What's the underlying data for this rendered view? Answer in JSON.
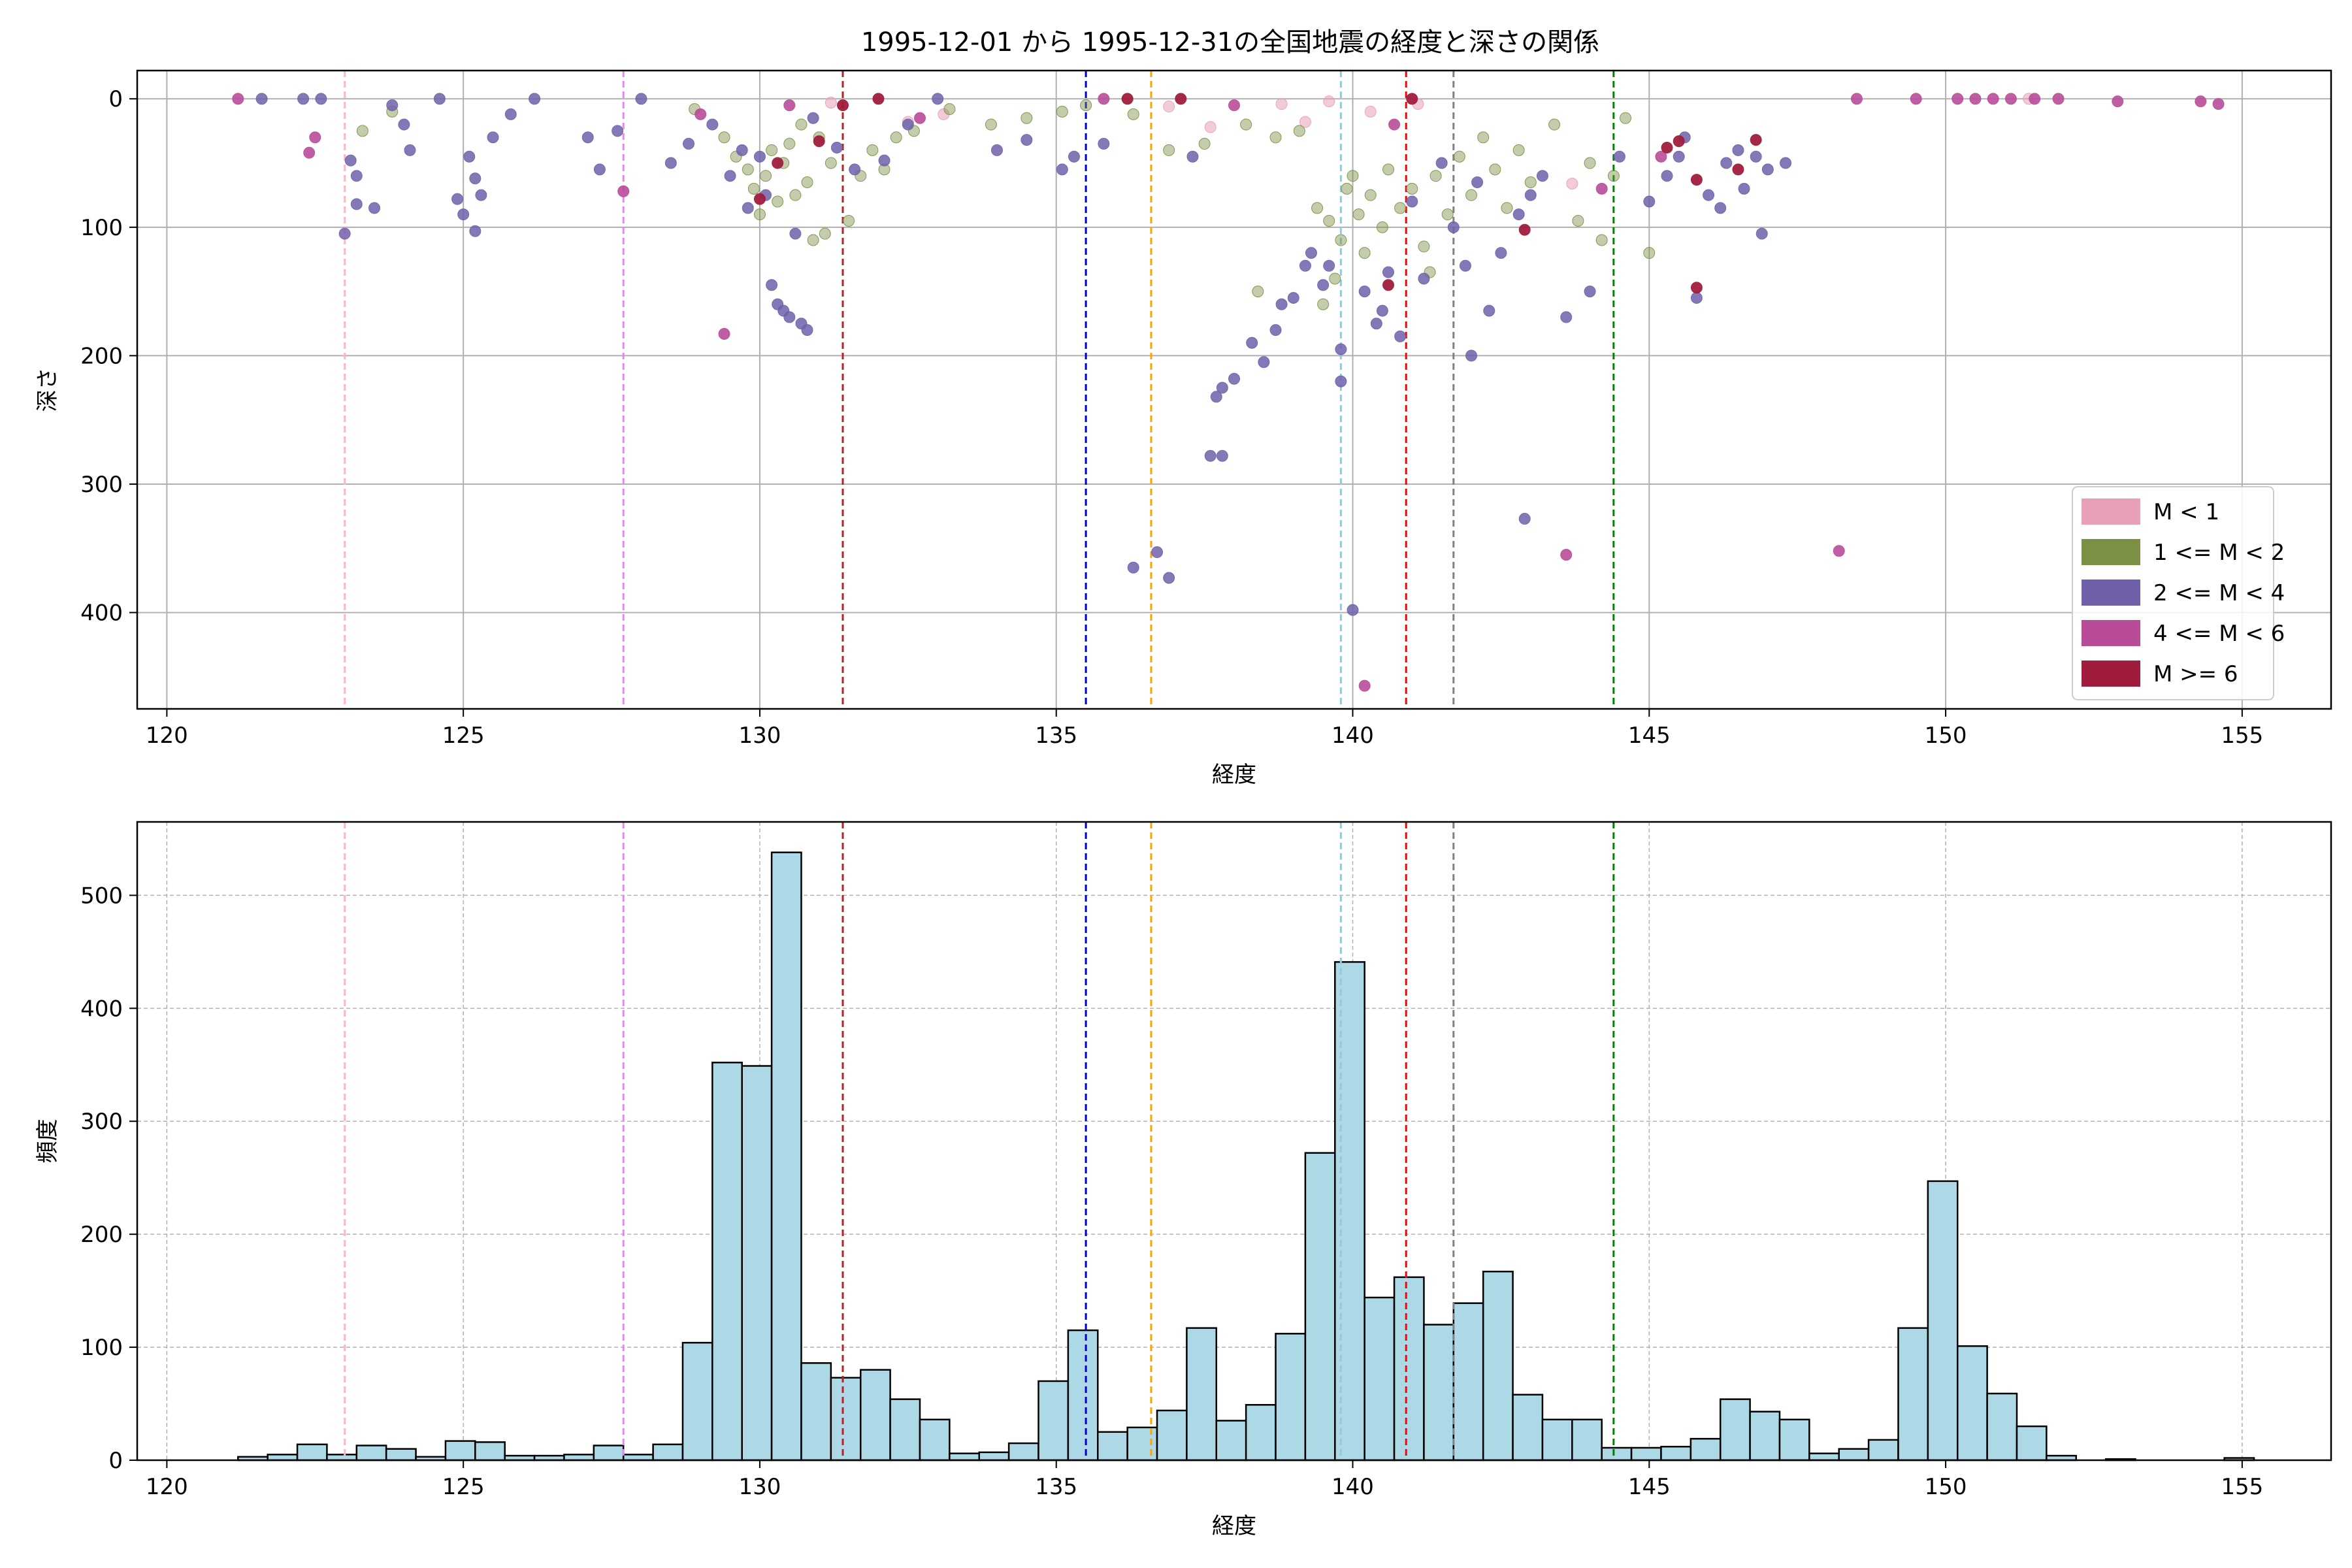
{
  "figure": {
    "title": "1995-12-01 から 1995-12-31の全国地震の経度と深さの関係"
  },
  "chart_data": [
    {
      "type": "scatter",
      "xlabel": "経度",
      "ylabel": "深さ",
      "xlim": [
        119.5,
        156.5
      ],
      "ylim": [
        475,
        -22
      ],
      "y_inverted": true,
      "x_ticks": [
        120,
        125,
        130,
        135,
        140,
        145,
        150,
        155
      ],
      "y_ticks": [
        0,
        100,
        200,
        300,
        400
      ],
      "grid": true,
      "legend_position": "lower-right",
      "legend": [
        {
          "label": "M < 1",
          "color": "#e8a0b8"
        },
        {
          "label": "1 <= M < 2",
          "color": "#7b8f45"
        },
        {
          "label": "2 <= M < 4",
          "color": "#7060aa"
        },
        {
          "label": "4 <= M < 6",
          "color": "#b84c98"
        },
        {
          "label": "M >= 6",
          "color": "#a01c3c"
        }
      ],
      "vlines": [
        {
          "x": 123.0,
          "color": "#ffb6c1"
        },
        {
          "x": 127.7,
          "color": "#ee82ee"
        },
        {
          "x": 131.4,
          "color": "#b22222"
        },
        {
          "x": 135.5,
          "color": "#0000cd"
        },
        {
          "x": 136.6,
          "color": "#ffa500"
        },
        {
          "x": 139.8,
          "color": "#87ceeb"
        },
        {
          "x": 140.9,
          "color": "#ff0000"
        },
        {
          "x": 141.7,
          "color": "#808080"
        },
        {
          "x": 144.4,
          "color": "#008000"
        }
      ],
      "series": [
        {
          "color": "#e8a0b8",
          "points": [
            [
              131.2,
              3
            ],
            [
              133.1,
              12
            ],
            [
              136.9,
              6
            ],
            [
              138.8,
              4
            ],
            [
              139.2,
              18
            ],
            [
              139.6,
              2
            ],
            [
              140.3,
              10
            ],
            [
              141.1,
              4
            ],
            [
              143.7,
              66
            ],
            [
              151.4,
              0
            ],
            [
              132.5,
              18
            ],
            [
              137.6,
              22
            ]
          ]
        },
        {
          "color": "#7b8f45",
          "points": [
            [
              123.3,
              25
            ],
            [
              123.8,
              10
            ],
            [
              128.9,
              8
            ],
            [
              129.4,
              30
            ],
            [
              129.6,
              45
            ],
            [
              129.8,
              55
            ],
            [
              129.9,
              70
            ],
            [
              130.0,
              90
            ],
            [
              130.1,
              60
            ],
            [
              130.2,
              40
            ],
            [
              130.3,
              80
            ],
            [
              130.4,
              50
            ],
            [
              130.5,
              35
            ],
            [
              130.6,
              75
            ],
            [
              130.7,
              20
            ],
            [
              130.8,
              65
            ],
            [
              131.0,
              30
            ],
            [
              131.2,
              50
            ],
            [
              131.5,
              95
            ],
            [
              131.7,
              60
            ],
            [
              131.9,
              40
            ],
            [
              132.1,
              55
            ],
            [
              132.3,
              30
            ],
            [
              132.6,
              25
            ],
            [
              133.2,
              8
            ],
            [
              133.9,
              20
            ],
            [
              134.5,
              15
            ],
            [
              135.1,
              10
            ],
            [
              135.5,
              5
            ],
            [
              136.3,
              12
            ],
            [
              136.9,
              40
            ],
            [
              137.5,
              35
            ],
            [
              138.2,
              20
            ],
            [
              138.7,
              30
            ],
            [
              139.1,
              25
            ],
            [
              139.4,
              85
            ],
            [
              139.6,
              95
            ],
            [
              139.8,
              110
            ],
            [
              139.9,
              70
            ],
            [
              140.0,
              60
            ],
            [
              140.1,
              90
            ],
            [
              140.2,
              120
            ],
            [
              140.3,
              75
            ],
            [
              140.5,
              100
            ],
            [
              140.6,
              55
            ],
            [
              140.8,
              85
            ],
            [
              141.0,
              70
            ],
            [
              141.2,
              115
            ],
            [
              141.4,
              60
            ],
            [
              141.6,
              90
            ],
            [
              141.8,
              45
            ],
            [
              142.0,
              75
            ],
            [
              142.2,
              30
            ],
            [
              142.4,
              55
            ],
            [
              142.6,
              85
            ],
            [
              142.8,
              40
            ],
            [
              143.0,
              65
            ],
            [
              143.4,
              20
            ],
            [
              143.8,
              95
            ],
            [
              144.0,
              50
            ],
            [
              144.2,
              110
            ],
            [
              144.4,
              60
            ],
            [
              144.6,
              15
            ],
            [
              145.0,
              120
            ],
            [
              139.7,
              140
            ],
            [
              139.5,
              160
            ],
            [
              138.4,
              150
            ],
            [
              130.9,
              110
            ],
            [
              131.1,
              105
            ],
            [
              141.3,
              135
            ]
          ]
        },
        {
          "color": "#7060aa",
          "points": [
            [
              121.6,
              0
            ],
            [
              122.3,
              0
            ],
            [
              122.6,
              0
            ],
            [
              123.0,
              105
            ],
            [
              123.1,
              48
            ],
            [
              123.2,
              60
            ],
            [
              123.2,
              82
            ],
            [
              123.5,
              85
            ],
            [
              123.8,
              5
            ],
            [
              124.0,
              20
            ],
            [
              124.1,
              40
            ],
            [
              124.6,
              0
            ],
            [
              124.9,
              78
            ],
            [
              125.0,
              90
            ],
            [
              125.1,
              45
            ],
            [
              125.2,
              103
            ],
            [
              125.2,
              62
            ],
            [
              125.3,
              75
            ],
            [
              125.5,
              30
            ],
            [
              125.8,
              12
            ],
            [
              126.2,
              0
            ],
            [
              127.1,
              30
            ],
            [
              127.3,
              55
            ],
            [
              127.6,
              25
            ],
            [
              128.0,
              0
            ],
            [
              128.5,
              50
            ],
            [
              128.8,
              35
            ],
            [
              129.2,
              20
            ],
            [
              129.5,
              60
            ],
            [
              129.7,
              40
            ],
            [
              129.8,
              85
            ],
            [
              130.0,
              45
            ],
            [
              130.1,
              75
            ],
            [
              130.2,
              145
            ],
            [
              130.3,
              160
            ],
            [
              130.4,
              165
            ],
            [
              130.5,
              170
            ],
            [
              130.7,
              175
            ],
            [
              130.8,
              180
            ],
            [
              130.6,
              105
            ],
            [
              130.9,
              15
            ],
            [
              131.3,
              38
            ],
            [
              131.6,
              55
            ],
            [
              132.1,
              48
            ],
            [
              132.5,
              20
            ],
            [
              133.0,
              0
            ],
            [
              134.0,
              40
            ],
            [
              134.5,
              32
            ],
            [
              135.1,
              55
            ],
            [
              135.3,
              45
            ],
            [
              135.8,
              35
            ],
            [
              136.3,
              365
            ],
            [
              136.7,
              353
            ],
            [
              136.9,
              373
            ],
            [
              137.3,
              45
            ],
            [
              137.6,
              278
            ],
            [
              137.8,
              278
            ],
            [
              137.7,
              232
            ],
            [
              137.8,
              225
            ],
            [
              138.0,
              218
            ],
            [
              138.3,
              190
            ],
            [
              138.5,
              205
            ],
            [
              138.7,
              180
            ],
            [
              138.8,
              160
            ],
            [
              139.0,
              155
            ],
            [
              139.2,
              130
            ],
            [
              139.3,
              120
            ],
            [
              139.5,
              145
            ],
            [
              139.6,
              130
            ],
            [
              139.8,
              195
            ],
            [
              139.8,
              220
            ],
            [
              140.0,
              398
            ],
            [
              140.2,
              150
            ],
            [
              140.4,
              175
            ],
            [
              140.5,
              165
            ],
            [
              140.6,
              135
            ],
            [
              140.8,
              185
            ],
            [
              141.0,
              80
            ],
            [
              141.2,
              140
            ],
            [
              141.5,
              50
            ],
            [
              141.7,
              100
            ],
            [
              141.9,
              130
            ],
            [
              142.0,
              200
            ],
            [
              142.1,
              65
            ],
            [
              142.3,
              165
            ],
            [
              142.5,
              120
            ],
            [
              142.8,
              90
            ],
            [
              142.9,
              327
            ],
            [
              143.0,
              75
            ],
            [
              143.2,
              60
            ],
            [
              143.6,
              170
            ],
            [
              144.0,
              150
            ],
            [
              144.5,
              45
            ],
            [
              145.0,
              80
            ],
            [
              145.3,
              60
            ],
            [
              145.5,
              45
            ],
            [
              145.8,
              155
            ],
            [
              146.0,
              75
            ],
            [
              146.3,
              50
            ],
            [
              146.6,
              70
            ],
            [
              146.8,
              45
            ],
            [
              147.0,
              55
            ],
            [
              146.5,
              40
            ],
            [
              146.9,
              105
            ],
            [
              147.3,
              50
            ],
            [
              146.2,
              85
            ],
            [
              145.6,
              30
            ]
          ]
        },
        {
          "color": "#b84c98",
          "points": [
            [
              121.2,
              0
            ],
            [
              122.4,
              42
            ],
            [
              122.5,
              30
            ],
            [
              127.7,
              72
            ],
            [
              129.0,
              12
            ],
            [
              129.4,
              183
            ],
            [
              130.5,
              5
            ],
            [
              132.7,
              15
            ],
            [
              135.8,
              0
            ],
            [
              138.0,
              5
            ],
            [
              140.2,
              457
            ],
            [
              140.7,
              20
            ],
            [
              143.6,
              355
            ],
            [
              145.2,
              45
            ],
            [
              148.2,
              352
            ],
            [
              148.5,
              0
            ],
            [
              149.5,
              0
            ],
            [
              150.2,
              0
            ],
            [
              150.5,
              0
            ],
            [
              150.8,
              0
            ],
            [
              151.1,
              0
            ],
            [
              151.5,
              0
            ],
            [
              151.9,
              0
            ],
            [
              152.9,
              2
            ],
            [
              154.3,
              2
            ],
            [
              154.6,
              4
            ],
            [
              144.2,
              70
            ]
          ]
        },
        {
          "color": "#a01c3c",
          "points": [
            [
              130.0,
              78
            ],
            [
              130.3,
              50
            ],
            [
              131.0,
              33
            ],
            [
              131.4,
              5
            ],
            [
              132.0,
              0
            ],
            [
              136.2,
              0
            ],
            [
              137.1,
              0
            ],
            [
              140.6,
              145
            ],
            [
              141.0,
              0
            ],
            [
              142.9,
              102
            ],
            [
              145.3,
              38
            ],
            [
              145.5,
              33
            ],
            [
              145.8,
              63
            ],
            [
              145.8,
              147
            ],
            [
              146.5,
              55
            ],
            [
              146.8,
              32
            ]
          ]
        }
      ]
    },
    {
      "type": "bar",
      "xlabel": "経度",
      "ylabel": "頻度",
      "xlim": [
        119.5,
        156.5
      ],
      "ylim": [
        0,
        565
      ],
      "x_ticks": [
        120,
        125,
        130,
        135,
        140,
        145,
        150,
        155
      ],
      "y_ticks": [
        0,
        100,
        200,
        300,
        400,
        500
      ],
      "grid": true,
      "bin_start": 121.2,
      "bin_width": 0.5,
      "values": [
        3,
        5,
        14,
        5,
        13,
        10,
        3,
        17,
        16,
        4,
        4,
        5,
        13,
        5,
        14,
        104,
        352,
        349,
        538,
        86,
        73,
        80,
        54,
        36,
        6,
        7,
        15,
        70,
        115,
        25,
        29,
        44,
        117,
        35,
        49,
        112,
        272,
        441,
        144,
        162,
        120,
        139,
        167,
        58,
        36,
        36,
        11,
        11,
        12,
        19,
        54,
        43,
        36,
        6,
        10,
        18,
        117,
        247,
        101,
        59,
        30,
        4,
        0,
        1,
        0,
        0,
        0,
        2
      ],
      "vlines": [
        {
          "x": 123.0,
          "color": "#ffb6c1"
        },
        {
          "x": 127.7,
          "color": "#ee82ee"
        },
        {
          "x": 131.4,
          "color": "#b22222"
        },
        {
          "x": 135.5,
          "color": "#0000cd"
        },
        {
          "x": 136.6,
          "color": "#ffa500"
        },
        {
          "x": 139.8,
          "color": "#87ceeb"
        },
        {
          "x": 140.9,
          "color": "#ff0000"
        },
        {
          "x": 141.7,
          "color": "#808080"
        },
        {
          "x": 144.4,
          "color": "#008000"
        }
      ],
      "bar_color": "#add8e6",
      "edge_color": "#000000"
    }
  ]
}
